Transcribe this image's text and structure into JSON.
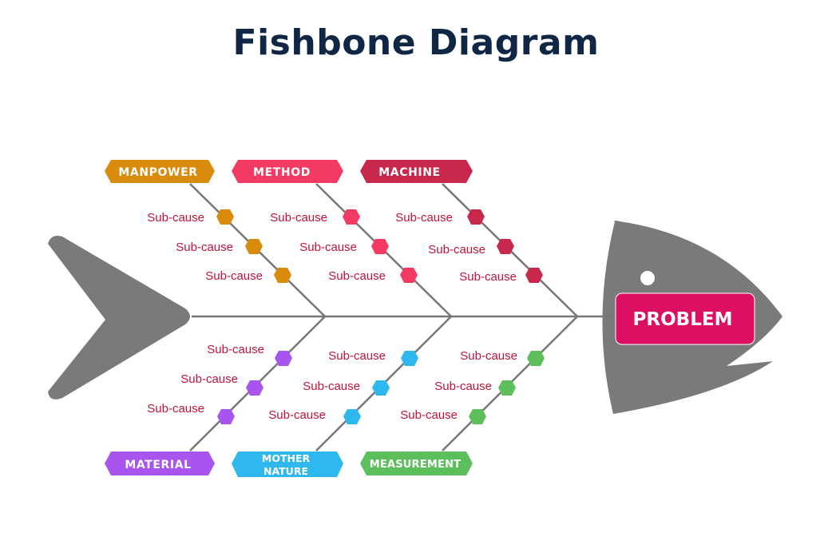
{
  "title": "Fishbone Diagram",
  "problem": {
    "label": "PROBLEM",
    "color": "#dc0f62"
  },
  "colors": {
    "body": "#7a7a7a",
    "spine": "#777777",
    "subcause_text": "#c0143c"
  },
  "categories": [
    {
      "key": "manpower",
      "label": "MANPOWER",
      "color": "#d98b0c",
      "subcauses": [
        "Sub-cause",
        "Sub-cause",
        "Sub-cause"
      ]
    },
    {
      "key": "method",
      "label": "METHOD",
      "color": "#f23a63",
      "subcauses": [
        "Sub-cause",
        "Sub-cause",
        "Sub-cause"
      ]
    },
    {
      "key": "machine",
      "label": "MACHINE",
      "color": "#c8284b",
      "subcauses": [
        "Sub-cause",
        "Sub-cause",
        "Sub-cause"
      ]
    },
    {
      "key": "material",
      "label": "MATERIAL",
      "color": "#a855f0",
      "subcauses": [
        "Sub-cause",
        "Sub-cause",
        "Sub-cause"
      ]
    },
    {
      "key": "mother_nature",
      "label_line1": "MOTHER",
      "label_line2": "NATURE",
      "color": "#2fb8ee",
      "subcauses": [
        "Sub-cause",
        "Sub-cause",
        "Sub-cause"
      ]
    },
    {
      "key": "measurement",
      "label": "MEASUREMENT",
      "color": "#5cbf5c",
      "subcauses": [
        "Sub-cause",
        "Sub-cause",
        "Sub-cause"
      ]
    }
  ]
}
